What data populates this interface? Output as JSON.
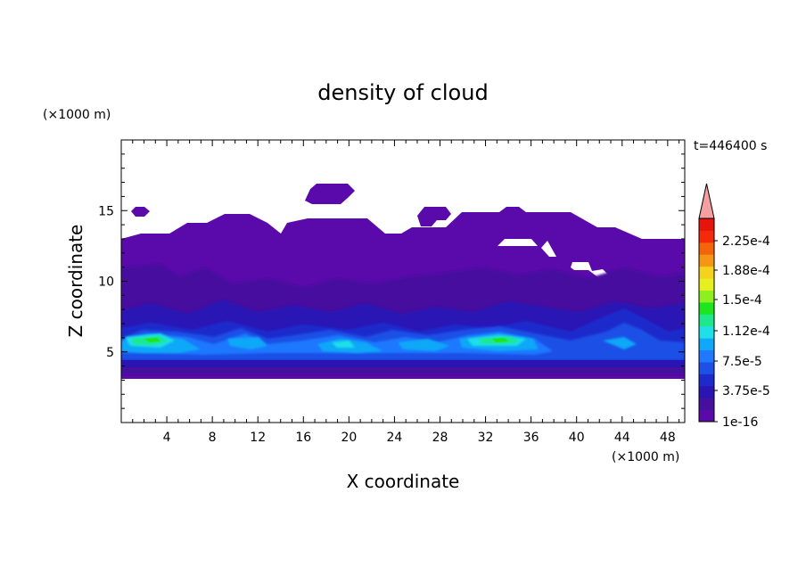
{
  "chart_data": {
    "type": "heatmap",
    "title": "density of cloud",
    "xlabel": "X coordinate",
    "ylabel": "Z coordinate",
    "x_unit": "(×1000 m)",
    "y_unit": "(×1000 m)",
    "time_label": "t=446400 s",
    "xlim": [
      0,
      49.5
    ],
    "ylim": [
      0,
      20
    ],
    "x_ticks": [
      4,
      8,
      12,
      16,
      20,
      24,
      28,
      32,
      36,
      40,
      44,
      48
    ],
    "y_ticks": [
      5,
      10,
      15
    ],
    "grid": false,
    "colorbar": {
      "levels": [
        "1e-16",
        "3.75e-5",
        "7.5e-5",
        "1.12e-4",
        "1.5e-4",
        "1.88e-4",
        "2.25e-4"
      ],
      "colors": [
        "#5a0aaa",
        "#46109f",
        "#2a14b4",
        "#1e2acc",
        "#1f50e6",
        "#1f78ff",
        "#10a8f8",
        "#1fe0e6",
        "#1ee88c",
        "#1ee61e",
        "#8cf01e",
        "#e6f01e",
        "#f5d21e",
        "#f59614",
        "#f5640a",
        "#f52a0a",
        "#e6140a"
      ],
      "extend_color": "#f5a0a0"
    },
    "field": {
      "background_layer": {
        "z_range": [
          3.2,
          12.8
        ],
        "color": "#5a0aaa"
      },
      "band_core": {
        "z_range": [
          4.0,
          6.8
        ],
        "color_range": [
          "#1e2acc",
          "#1fe0e6"
        ]
      },
      "max_regions": [
        {
          "x": 3.0,
          "z": 5.7,
          "level": "1.5e-4"
        },
        {
          "x": 34.0,
          "z": 5.8,
          "level": "1.5e-4"
        }
      ],
      "upper_patches": [
        {
          "x_range": [
            1,
            2.5
          ],
          "z_range": [
            14.4,
            15.2
          ]
        },
        {
          "x_range": [
            16.5,
            21
          ],
          "z_range": [
            15.6,
            16.8
          ]
        },
        {
          "x_range": [
            26,
            29
          ],
          "z_range": [
            14.0,
            15.2
          ]
        }
      ]
    }
  }
}
